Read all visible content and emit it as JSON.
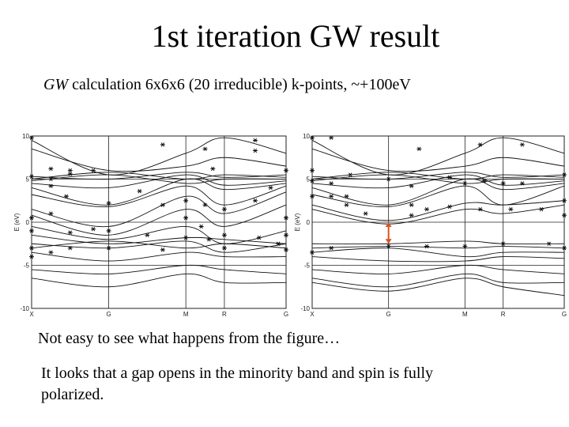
{
  "title": "1st iteration GW result",
  "subtitle": {
    "italic": "GW",
    "rest": " calculation 6x6x6 (20 irreducible) k-points, ~+100eV"
  },
  "note1": "Not easy to see what happens from the figure…",
  "note2": "It looks that a gap opens in the minority band and spin is fully polarized.",
  "colors": {
    "line": "#111111",
    "frame": "#222222",
    "arrow": "#d9541e"
  },
  "chart_data": [
    {
      "type": "line",
      "panel": "left",
      "ylabel": "E (eV)",
      "ylim": [
        -10,
        10
      ],
      "yticks": [
        10,
        5,
        0,
        -5,
        -10
      ],
      "x_tick_labels": [
        "X",
        "G",
        "M",
        "R",
        "G"
      ],
      "x_tick_positions": [
        0,
        1,
        2,
        2.5,
        3.3
      ],
      "gridlines_at_ticks": true,
      "series": [
        {
          "values": [
            9.5,
            5.5,
            8.0,
            9.8,
            8.0
          ]
        },
        {
          "values": [
            8.5,
            6.0,
            6.5,
            7.5,
            6.5
          ]
        },
        {
          "values": [
            5.3,
            5.0,
            5.8,
            5.2,
            5.5
          ]
        },
        {
          "values": [
            5.0,
            5.8,
            5.0,
            5.5,
            5.2
          ]
        },
        {
          "values": [
            4.8,
            5.5,
            4.5,
            5.0,
            5.0
          ]
        },
        {
          "values": [
            4.5,
            4.0,
            5.5,
            4.3,
            4.8
          ]
        },
        {
          "values": [
            4.0,
            2.0,
            5.0,
            3.8,
            4.5
          ]
        },
        {
          "values": [
            3.2,
            1.8,
            4.2,
            2.0,
            4.2
          ]
        },
        {
          "values": [
            1.5,
            -0.5,
            3.0,
            1.0,
            3.5
          ]
        },
        {
          "values": [
            0.8,
            -1.5,
            1.5,
            -0.5,
            2.0
          ]
        },
        {
          "values": [
            -0.5,
            -2.0,
            -0.5,
            -2.5,
            -1.0
          ]
        },
        {
          "values": [
            -1.5,
            -2.5,
            -1.8,
            -2.0,
            -2.5
          ]
        },
        {
          "values": [
            -2.5,
            -3.0,
            -2.2,
            -3.5,
            -2.5
          ]
        },
        {
          "values": [
            -3.0,
            -2.2,
            -3.0,
            -2.5,
            -3.0
          ]
        },
        {
          "values": [
            -3.5,
            -4.5,
            -3.5,
            -4.0,
            -4.0
          ]
        },
        {
          "values": [
            -5.5,
            -6.0,
            -5.0,
            -5.5,
            -6.0
          ]
        },
        {
          "values": [
            -6.5,
            -7.5,
            -6.0,
            -7.0,
            -7.0
          ]
        }
      ],
      "markers": [
        {
          "x": 0.0,
          "y": 9.8
        },
        {
          "x": 0.25,
          "y": 6.2
        },
        {
          "x": 0.5,
          "y": 6.0
        },
        {
          "x": 0.8,
          "y": 6.0
        },
        {
          "x": 1.7,
          "y": 9.0
        },
        {
          "x": 2.25,
          "y": 8.5
        },
        {
          "x": 2.35,
          "y": 6.2
        },
        {
          "x": 2.9,
          "y": 9.5
        },
        {
          "x": 2.9,
          "y": 8.3
        },
        {
          "x": 3.3,
          "y": 6.0
        },
        {
          "x": 0.0,
          "y": 5.3
        },
        {
          "x": 0.25,
          "y": 5.0
        },
        {
          "x": 0.25,
          "y": 4.2
        },
        {
          "x": 0.5,
          "y": 5.6
        },
        {
          "x": 1.4,
          "y": 3.6
        },
        {
          "x": 0.45,
          "y": 3.0
        },
        {
          "x": 1.0,
          "y": 2.2
        },
        {
          "x": 1.7,
          "y": 2.0
        },
        {
          "x": 2.0,
          "y": 2.5
        },
        {
          "x": 2.25,
          "y": 2.0
        },
        {
          "x": 2.5,
          "y": 1.5
        },
        {
          "x": 2.9,
          "y": 2.5
        },
        {
          "x": 3.1,
          "y": 4.0
        },
        {
          "x": 0.0,
          "y": 0.5
        },
        {
          "x": 0.25,
          "y": 1.0
        },
        {
          "x": 2.0,
          "y": 0.5
        },
        {
          "x": 2.2,
          "y": -0.5
        },
        {
          "x": 3.3,
          "y": 0.5
        },
        {
          "x": 0.0,
          "y": -1.0
        },
        {
          "x": 0.5,
          "y": -1.2
        },
        {
          "x": 0.8,
          "y": -0.8
        },
        {
          "x": 1.0,
          "y": -1.0
        },
        {
          "x": 1.5,
          "y": -1.5
        },
        {
          "x": 2.0,
          "y": -1.8
        },
        {
          "x": 2.5,
          "y": -1.5
        },
        {
          "x": 2.95,
          "y": -1.8
        },
        {
          "x": 3.3,
          "y": -1.5
        },
        {
          "x": 0.0,
          "y": -3.0
        },
        {
          "x": 0.25,
          "y": -3.5
        },
        {
          "x": 0.5,
          "y": -3.0
        },
        {
          "x": 1.0,
          "y": -3.0
        },
        {
          "x": 1.7,
          "y": -3.2
        },
        {
          "x": 2.5,
          "y": -3.0
        },
        {
          "x": 3.3,
          "y": -3.2
        },
        {
          "x": 0.0,
          "y": -4.0
        },
        {
          "x": 2.3,
          "y": -2.0
        },
        {
          "x": 3.2,
          "y": -2.5
        }
      ]
    },
    {
      "type": "line",
      "panel": "right",
      "ylabel": "E (eV)",
      "ylim": [
        -10,
        10
      ],
      "yticks": [
        10,
        5,
        0,
        -5,
        -10
      ],
      "x_tick_labels": [
        "X",
        "G",
        "M",
        "R",
        "G"
      ],
      "x_tick_positions": [
        0,
        1,
        2,
        2.5,
        3.3
      ],
      "gridlines_at_ticks": true,
      "series": [
        {
          "values": [
            9.5,
            5.5,
            8.0,
            9.8,
            8.0
          ]
        },
        {
          "values": [
            8.5,
            6.0,
            6.5,
            7.5,
            6.5
          ]
        },
        {
          "values": [
            5.3,
            5.0,
            5.8,
            5.2,
            5.5
          ]
        },
        {
          "values": [
            5.0,
            5.8,
            5.0,
            5.5,
            5.2
          ]
        },
        {
          "values": [
            4.8,
            5.5,
            4.5,
            5.0,
            5.0
          ]
        },
        {
          "values": [
            4.5,
            4.0,
            5.5,
            4.3,
            4.8
          ]
        },
        {
          "values": [
            4.0,
            2.0,
            5.0,
            3.8,
            4.5
          ]
        },
        {
          "values": [
            3.2,
            1.8,
            4.2,
            2.0,
            4.2
          ]
        },
        {
          "values": [
            2.0,
            0.2,
            2.2,
            2.0,
            2.5
          ]
        },
        {
          "values": [
            1.5,
            -0.2,
            1.5,
            1.0,
            2.0
          ]
        },
        {
          "values": [
            -2.5,
            -2.5,
            -2.2,
            -2.5,
            -2.5
          ]
        },
        {
          "values": [
            -3.0,
            -2.8,
            -3.0,
            -2.8,
            -3.0
          ]
        },
        {
          "values": [
            -3.5,
            -3.0,
            -4.0,
            -3.5,
            -3.5
          ]
        },
        {
          "values": [
            -4.0,
            -4.5,
            -4.5,
            -4.0,
            -4.2
          ]
        },
        {
          "values": [
            -5.5,
            -6.0,
            -5.0,
            -5.5,
            -6.0
          ]
        },
        {
          "values": [
            -6.5,
            -7.5,
            -6.0,
            -7.0,
            -7.0
          ]
        },
        {
          "values": [
            -7.0,
            -8.0,
            -6.5,
            -7.5,
            -8.5
          ]
        }
      ],
      "markers": [
        {
          "x": 0.0,
          "y": 9.8
        },
        {
          "x": 0.25,
          "y": 9.8
        },
        {
          "x": 1.4,
          "y": 8.5
        },
        {
          "x": 2.2,
          "y": 9.0
        },
        {
          "x": 2.75,
          "y": 9.0
        },
        {
          "x": 0.0,
          "y": 6.0
        },
        {
          "x": 0.5,
          "y": 5.5
        },
        {
          "x": 0.25,
          "y": 4.5
        },
        {
          "x": 0.0,
          "y": 4.8
        },
        {
          "x": 0.0,
          "y": 3.0
        },
        {
          "x": 0.25,
          "y": 3.0
        },
        {
          "x": 0.45,
          "y": 3.0
        },
        {
          "x": 1.0,
          "y": 5.0
        },
        {
          "x": 1.3,
          "y": 4.2
        },
        {
          "x": 1.8,
          "y": 5.2
        },
        {
          "x": 2.0,
          "y": 4.5
        },
        {
          "x": 2.25,
          "y": 4.8
        },
        {
          "x": 2.5,
          "y": 4.5
        },
        {
          "x": 2.75,
          "y": 4.5
        },
        {
          "x": 3.3,
          "y": 5.5
        },
        {
          "x": 1.3,
          "y": 2.0
        },
        {
          "x": 1.5,
          "y": 1.5
        },
        {
          "x": 1.8,
          "y": 1.8
        },
        {
          "x": 2.2,
          "y": 1.5
        },
        {
          "x": 2.6,
          "y": 1.5
        },
        {
          "x": 3.0,
          "y": 1.5
        },
        {
          "x": 3.3,
          "y": 2.5
        },
        {
          "x": 0.45,
          "y": 2.0
        },
        {
          "x": 0.7,
          "y": 1.0
        },
        {
          "x": 1.3,
          "y": 0.8
        },
        {
          "x": 3.3,
          "y": 0.8
        },
        {
          "x": 0.0,
          "y": -3.5
        },
        {
          "x": 0.25,
          "y": -3.0
        },
        {
          "x": 1.0,
          "y": -2.8
        },
        {
          "x": 1.5,
          "y": -2.8
        },
        {
          "x": 2.0,
          "y": -2.8
        },
        {
          "x": 2.5,
          "y": -2.5
        },
        {
          "x": 3.3,
          "y": -3.0
        },
        {
          "x": 3.1,
          "y": -2.5
        }
      ],
      "annotation": {
        "type": "double-arrow",
        "x": 1.0,
        "y_from": 0.0,
        "y_to": -2.5
      }
    }
  ]
}
